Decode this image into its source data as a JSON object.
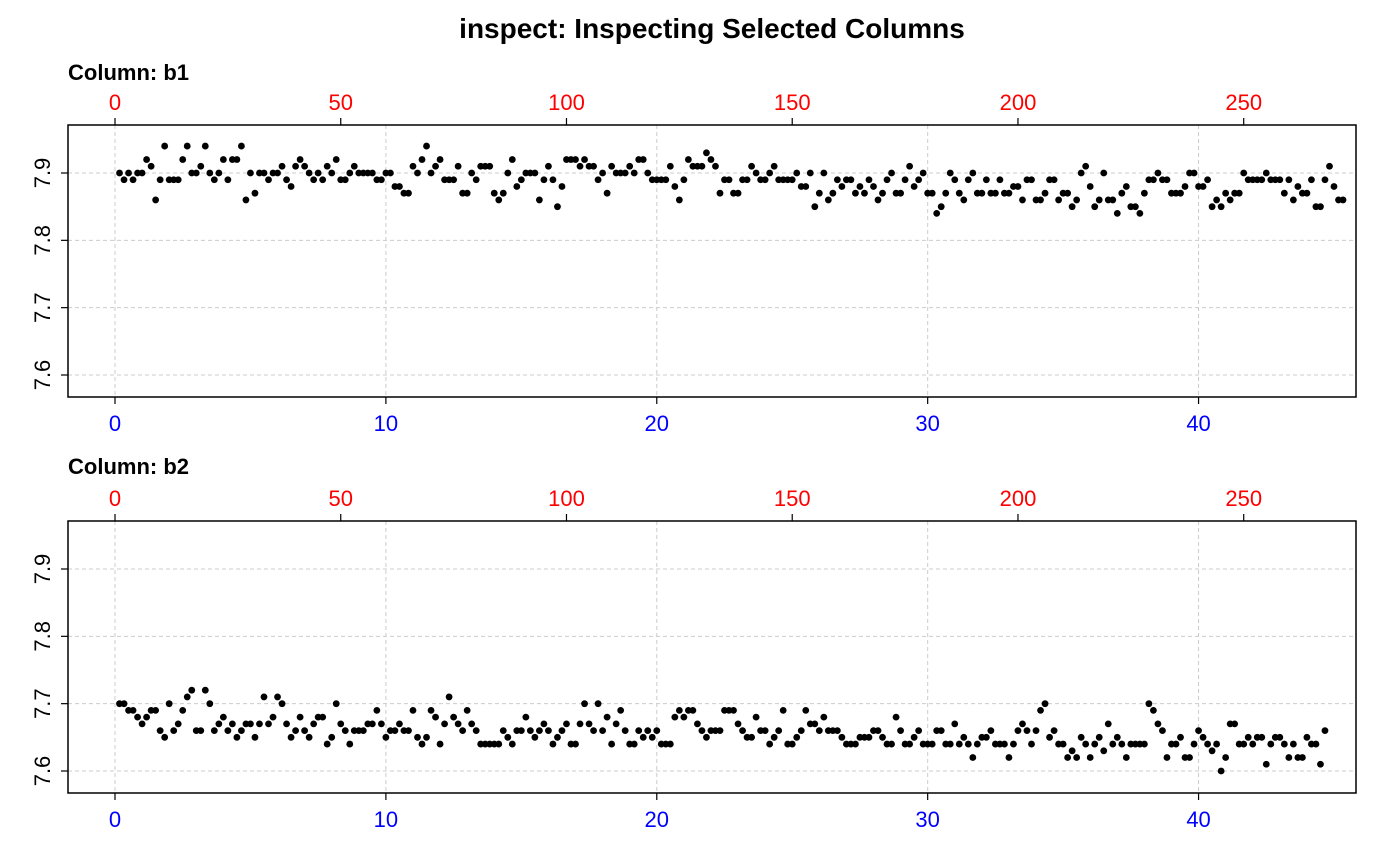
{
  "title": "inspect: Inspecting Selected Columns",
  "colors": {
    "top_axis": "#ff0000",
    "bottom_axis": "#0000ff",
    "points": "#000000",
    "grid": "#cccccc"
  },
  "chart_data": [
    {
      "type": "scatter",
      "panel_title": "Column: b1",
      "grid": true,
      "x_bottom": {
        "range": [
          0,
          45
        ],
        "ticks": [
          0,
          10,
          20,
          30,
          40
        ]
      },
      "x_top": {
        "range": [
          0,
          270
        ],
        "ticks": [
          0,
          50,
          100,
          150,
          200,
          250
        ]
      },
      "ylim": [
        7.6,
        7.9
      ],
      "yticks": [
        7.6,
        7.7,
        7.8,
        7.9
      ],
      "y": [
        7.9,
        7.89,
        7.9,
        7.89,
        7.9,
        7.9,
        7.92,
        7.91,
        7.86,
        7.89,
        7.94,
        7.89,
        7.89,
        7.89,
        7.92,
        7.94,
        7.9,
        7.9,
        7.91,
        7.94,
        7.9,
        7.89,
        7.9,
        7.92,
        7.89,
        7.92,
        7.92,
        7.94,
        7.86,
        7.9,
        7.87,
        7.9,
        7.9,
        7.89,
        7.9,
        7.9,
        7.91,
        7.89,
        7.88,
        7.91,
        7.92,
        7.91,
        7.9,
        7.89,
        7.9,
        7.89,
        7.91,
        7.9,
        7.92,
        7.89,
        7.89,
        7.9,
        7.91,
        7.9,
        7.9,
        7.9,
        7.9,
        7.89,
        7.89,
        7.9,
        7.9,
        7.88,
        7.88,
        7.87,
        7.87,
        7.91,
        7.9,
        7.92,
        7.94,
        7.9,
        7.91,
        7.92,
        7.89,
        7.89,
        7.89,
        7.91,
        7.87,
        7.87,
        7.9,
        7.89,
        7.91,
        7.91,
        7.91,
        7.87,
        7.86,
        7.87,
        7.9,
        7.92,
        7.88,
        7.89,
        7.9,
        7.9,
        7.9,
        7.86,
        7.89,
        7.91,
        7.89,
        7.85,
        7.88,
        7.92,
        7.92,
        7.92,
        7.91,
        7.92,
        7.91,
        7.91,
        7.89,
        7.9,
        7.87,
        7.91,
        7.9,
        7.9,
        7.9,
        7.91,
        7.9,
        7.92,
        7.92,
        7.9,
        7.89,
        7.89,
        7.89,
        7.89,
        7.91,
        7.88,
        7.86,
        7.89,
        7.92,
        7.91,
        7.91,
        7.91,
        7.93,
        7.92,
        7.91,
        7.87,
        7.89,
        7.89,
        7.87,
        7.87,
        7.89,
        7.89,
        7.91,
        7.9,
        7.89,
        7.89,
        7.9,
        7.91,
        7.89,
        7.89,
        7.89,
        7.89,
        7.9,
        7.88,
        7.88,
        7.9,
        7.85,
        7.87,
        7.9,
        7.86,
        7.87,
        7.89,
        7.88,
        7.89,
        7.89,
        7.87,
        7.88,
        7.87,
        7.89,
        7.88,
        7.86,
        7.87,
        7.89,
        7.9,
        7.87,
        7.87,
        7.89,
        7.91,
        7.88,
        7.89,
        7.9,
        7.87,
        7.87,
        7.84,
        7.85,
        7.87,
        7.9,
        7.89,
        7.87,
        7.86,
        7.89,
        7.9,
        7.87,
        7.87,
        7.89,
        7.87,
        7.87,
        7.89,
        7.87,
        7.87,
        7.88,
        7.88,
        7.86,
        7.89,
        7.89,
        7.86,
        7.86,
        7.87,
        7.89,
        7.89,
        7.86,
        7.87,
        7.87,
        7.85,
        7.86,
        7.9,
        7.91,
        7.88,
        7.85,
        7.86,
        7.9,
        7.86,
        7.86,
        7.84,
        7.87,
        7.88,
        7.85,
        7.85,
        7.84,
        7.87,
        7.89,
        7.89,
        7.9,
        7.89,
        7.89,
        7.87,
        7.87,
        7.87,
        7.88,
        7.9,
        7.9,
        7.88,
        7.88,
        7.89,
        7.85,
        7.86,
        7.85,
        7.87,
        7.86,
        7.87,
        7.87,
        7.9,
        7.89,
        7.89,
        7.89,
        7.89,
        7.9,
        7.89,
        7.89,
        7.89,
        7.87,
        7.89,
        7.86,
        7.88,
        7.87,
        7.87,
        7.89,
        7.85,
        7.85,
        7.89,
        7.91,
        7.88,
        7.86,
        7.86
      ]
    },
    {
      "type": "scatter",
      "panel_title": "Column: b2",
      "grid": true,
      "x_bottom": {
        "range": [
          0,
          45
        ],
        "ticks": [
          0,
          10,
          20,
          30,
          40
        ]
      },
      "x_top": {
        "range": [
          0,
          270
        ],
        "ticks": [
          0,
          50,
          100,
          150,
          200,
          250
        ]
      },
      "ylim": [
        7.6,
        7.9
      ],
      "yticks": [
        7.6,
        7.7,
        7.8,
        7.9
      ],
      "y": [
        7.7,
        7.7,
        7.69,
        7.69,
        7.68,
        7.67,
        7.68,
        7.69,
        7.69,
        7.66,
        7.65,
        7.7,
        7.66,
        7.67,
        7.69,
        7.71,
        7.72,
        7.66,
        7.66,
        7.72,
        7.7,
        7.66,
        7.67,
        7.68,
        7.66,
        7.67,
        7.65,
        7.66,
        7.67,
        7.67,
        7.65,
        7.67,
        7.71,
        7.67,
        7.68,
        7.71,
        7.7,
        7.67,
        7.65,
        7.66,
        7.68,
        7.66,
        7.65,
        7.67,
        7.68,
        7.68,
        7.64,
        7.65,
        7.7,
        7.67,
        7.66,
        7.64,
        7.66,
        7.66,
        7.66,
        7.67,
        7.67,
        7.69,
        7.67,
        7.65,
        7.66,
        7.66,
        7.67,
        7.66,
        7.66,
        7.69,
        7.65,
        7.64,
        7.65,
        7.69,
        7.68,
        7.64,
        7.67,
        7.71,
        7.68,
        7.67,
        7.66,
        7.69,
        7.67,
        7.66,
        7.64,
        7.64,
        7.64,
        7.64,
        7.64,
        7.66,
        7.65,
        7.64,
        7.66,
        7.66,
        7.68,
        7.66,
        7.65,
        7.66,
        7.67,
        7.66,
        7.64,
        7.65,
        7.66,
        7.67,
        7.64,
        7.64,
        7.67,
        7.7,
        7.67,
        7.66,
        7.7,
        7.66,
        7.68,
        7.64,
        7.67,
        7.69,
        7.66,
        7.64,
        7.64,
        7.66,
        7.65,
        7.66,
        7.65,
        7.66,
        7.64,
        7.64,
        7.64,
        7.68,
        7.69,
        7.68,
        7.69,
        7.69,
        7.67,
        7.66,
        7.65,
        7.66,
        7.66,
        7.66,
        7.69,
        7.69,
        7.69,
        7.67,
        7.66,
        7.65,
        7.65,
        7.68,
        7.66,
        7.66,
        7.64,
        7.65,
        7.66,
        7.69,
        7.64,
        7.64,
        7.65,
        7.66,
        7.69,
        7.67,
        7.67,
        7.66,
        7.68,
        7.66,
        7.66,
        7.66,
        7.65,
        7.64,
        7.64,
        7.64,
        7.65,
        7.65,
        7.65,
        7.66,
        7.66,
        7.65,
        7.64,
        7.64,
        7.68,
        7.66,
        7.64,
        7.64,
        7.65,
        7.66,
        7.64,
        7.64,
        7.64,
        7.66,
        7.66,
        7.64,
        7.64,
        7.67,
        7.64,
        7.65,
        7.64,
        7.62,
        7.64,
        7.65,
        7.65,
        7.66,
        7.64,
        7.64,
        7.64,
        7.62,
        7.64,
        7.66,
        7.67,
        7.66,
        7.64,
        7.66,
        7.69,
        7.7,
        7.65,
        7.66,
        7.64,
        7.64,
        7.62,
        7.63,
        7.62,
        7.65,
        7.64,
        7.62,
        7.64,
        7.65,
        7.63,
        7.67,
        7.64,
        7.65,
        7.64,
        7.62,
        7.64,
        7.64,
        7.64,
        7.64,
        7.7,
        7.69,
        7.67,
        7.66,
        7.62,
        7.64,
        7.64,
        7.65,
        7.62,
        7.62,
        7.64,
        7.66,
        7.65,
        7.64,
        7.63,
        7.64,
        7.6,
        7.62,
        7.67,
        7.67,
        7.64,
        7.64,
        7.65,
        7.64,
        7.65,
        7.65,
        7.61,
        7.64,
        7.65,
        7.65,
        7.64,
        7.62,
        7.64,
        7.62,
        7.62,
        7.65,
        7.64,
        7.64,
        7.61,
        7.66
      ]
    }
  ]
}
